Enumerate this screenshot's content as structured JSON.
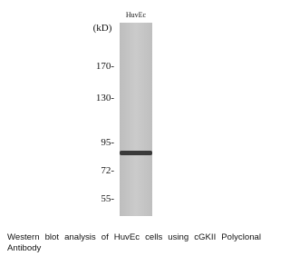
{
  "figure": {
    "lane_label": "HuvEc",
    "unit_label": "(kD)",
    "markers": [
      "170-",
      "130-",
      "95-",
      "72-",
      "55-"
    ],
    "caption": "Western blot analysis of HuvEc cells using cGKII Polyclonal Antibody"
  }
}
